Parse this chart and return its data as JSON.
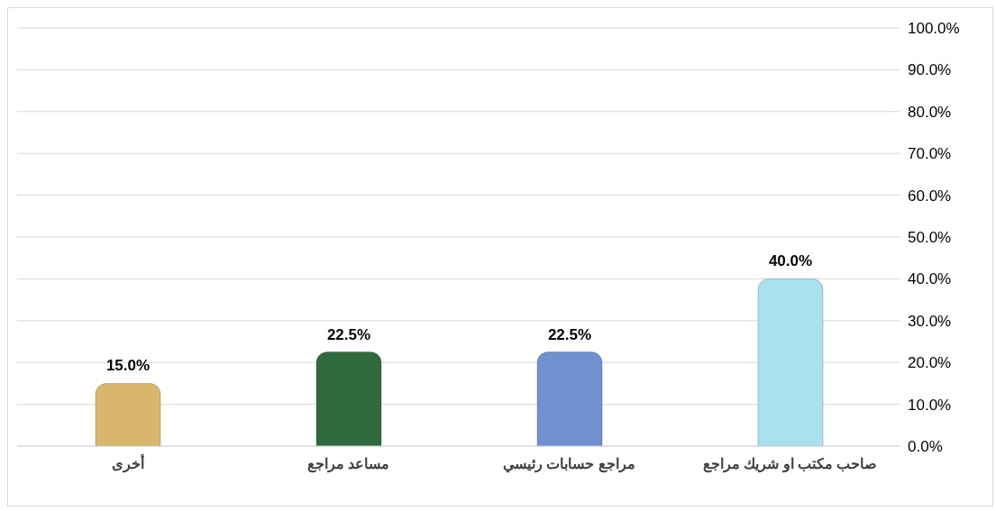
{
  "chart_data": {
    "type": "bar",
    "categories": [
      "أخرى",
      "مساعد مراجع",
      "مراجع حسابات رئيسي",
      "صاحب مكتب او شريك مراجع"
    ],
    "values": [
      15,
      22.5,
      22.5,
      40
    ],
    "colors": [
      "#d8b66c",
      "#2f6b3c",
      "#7090d0",
      "#a9e2ee"
    ],
    "value_labels": [
      "15.0%",
      "22.5%",
      "22.5%",
      "40.0%"
    ],
    "ylim": [
      0,
      100
    ],
    "yticks": [
      {
        "value": 0,
        "label": "0.0%"
      },
      {
        "value": 10,
        "label": "10.0%"
      },
      {
        "value": 20,
        "label": "20.0%"
      },
      {
        "value": 30,
        "label": "30.0%"
      },
      {
        "value": 40,
        "label": "40.0%"
      },
      {
        "value": 50,
        "label": "50.0%"
      },
      {
        "value": 60,
        "label": "60.0%"
      },
      {
        "value": 70,
        "label": "70.0%"
      },
      {
        "value": 80,
        "label": "80.0%"
      },
      {
        "value": 90,
        "label": "90.0%"
      },
      {
        "value": 100,
        "label": "100.0%"
      }
    ],
    "grid": "y"
  }
}
